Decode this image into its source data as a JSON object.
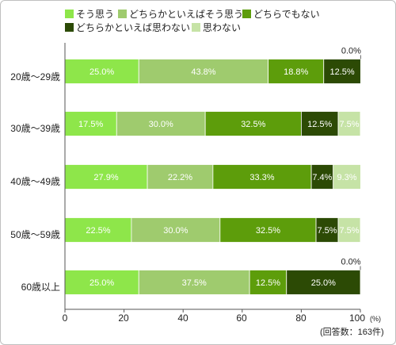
{
  "chart_data": {
    "type": "bar",
    "orientation": "horizontal",
    "stacked": true,
    "categories": [
      "20歳～29歳",
      "30歳～39歳",
      "40歳～49歳",
      "50歳～59歳",
      "60歳以上"
    ],
    "series": [
      {
        "name": "そう思う",
        "color": "#8ee64a",
        "values": [
          25.0,
          17.5,
          27.9,
          22.5,
          25.0
        ],
        "labels": [
          "25.0%",
          "17.5%",
          "27.9%",
          "22.5%",
          "25.0%"
        ]
      },
      {
        "name": "どちらかといえばそう思う",
        "color": "#9fcb6e",
        "values": [
          43.8,
          30.0,
          22.2,
          30.0,
          37.5
        ],
        "labels": [
          "43.8%",
          "30.0%",
          "22.2%",
          "30.0%",
          "37.5%"
        ]
      },
      {
        "name": "どちらでもない",
        "color": "#5d9d0b",
        "values": [
          18.8,
          32.5,
          33.3,
          32.5,
          12.5
        ],
        "labels": [
          "18.8%",
          "32.5%",
          "33.3%",
          "32.5%",
          "12.5%"
        ]
      },
      {
        "name": "どちらかといえば思わない",
        "color": "#2c4a05",
        "values": [
          12.5,
          12.5,
          7.4,
          7.5,
          25.0
        ],
        "labels": [
          "12.5%",
          "12.5%",
          "7.4%",
          "7.5%",
          "25.0%"
        ]
      },
      {
        "name": "思わない",
        "color": "#c6e3a6",
        "values": [
          0.0,
          7.5,
          9.3,
          7.5,
          0.0
        ],
        "labels": [
          "0.0%",
          "7.5%",
          "9.3%",
          "7.5%",
          "0.0%"
        ]
      }
    ],
    "xlim": [
      0,
      100
    ],
    "xticks": [
      "0",
      "20",
      "40",
      "60",
      "80",
      "100"
    ],
    "unit": "(%)",
    "note": "(回答数：163件)",
    "legend_position": "top",
    "grid": false
  }
}
